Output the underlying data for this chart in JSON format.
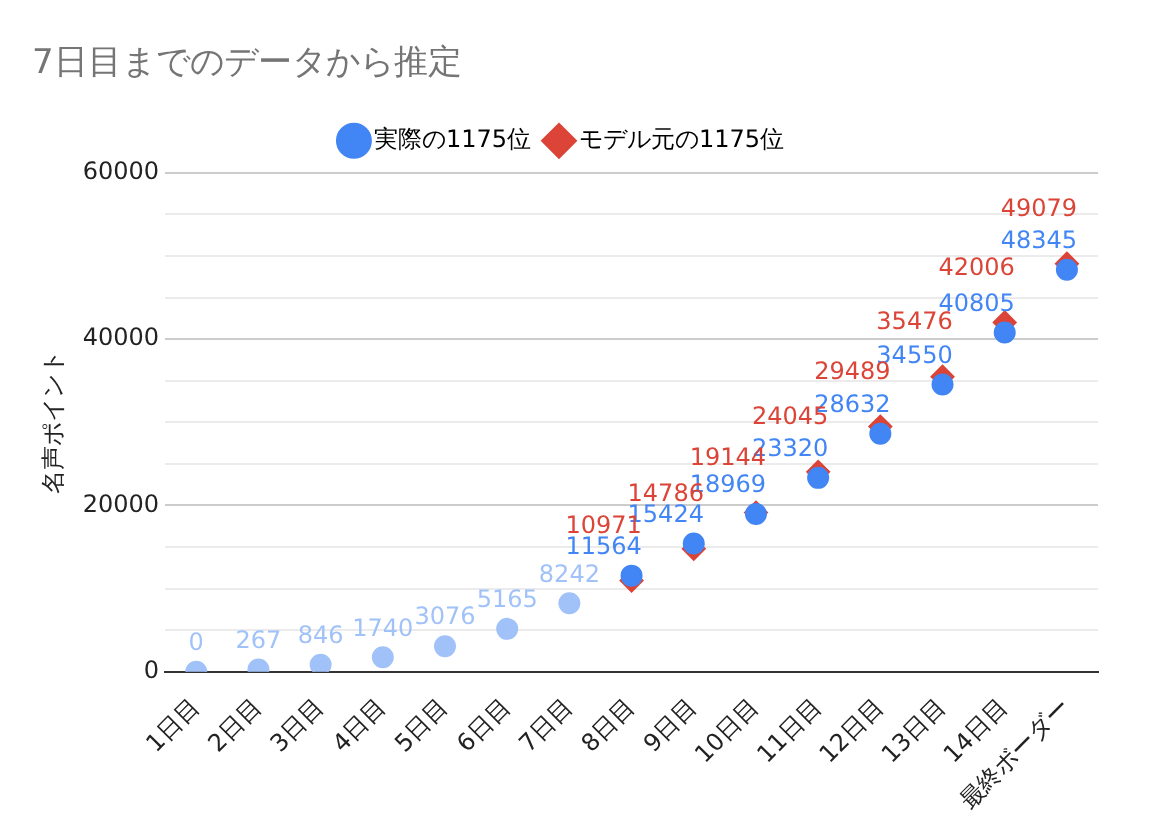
{
  "chart_data": {
    "type": "scatter",
    "title": "7日目までのデータから推定",
    "ylabel": "名声ポイント",
    "categories": [
      "1日目",
      "2日目",
      "3日目",
      "4日目",
      "5日目",
      "6日目",
      "7日目",
      "8日目",
      "9日目",
      "10日目",
      "11日目",
      "12日目",
      "13日目",
      "14日目",
      "最終ボーダー"
    ],
    "series": [
      {
        "name": "実際の1175位",
        "color": "#4285f4",
        "marker": "circle",
        "colors": [
          "#a0c2f9",
          "#a0c2f9",
          "#a0c2f9",
          "#a0c2f9",
          "#a0c2f9",
          "#a0c2f9",
          "#a0c2f9",
          "#4285f4",
          "#4285f4",
          "#4285f4",
          "#4285f4",
          "#4285f4",
          "#4285f4",
          "#4285f4",
          "#4285f4"
        ],
        "values": [
          0,
          267,
          846,
          1740,
          3076,
          5165,
          8242,
          11564,
          15424,
          18969,
          23320,
          28632,
          34550,
          40805,
          48345
        ]
      },
      {
        "name": "モデル元の1175位",
        "color": "#db4437",
        "marker": "diamond",
        "values": [
          null,
          null,
          null,
          null,
          null,
          null,
          null,
          10971,
          14786,
          19144,
          24045,
          29489,
          35476,
          42006,
          49079
        ]
      }
    ],
    "ylim": [
      0,
      60000
    ],
    "yticks": [
      0,
      {
        "value": 5000,
        "label": null
      },
      {
        "value": 10000,
        "label": null
      },
      {
        "value": 15000,
        "label": null
      },
      20000,
      {
        "value": 25000,
        "label": null
      },
      {
        "value": 30000,
        "label": null
      },
      {
        "value": 35000,
        "label": null
      },
      40000,
      {
        "value": 45000,
        "label": null
      },
      {
        "value": 50000,
        "label": null
      },
      {
        "value": 55000,
        "label": null
      },
      60000
    ],
    "grid": true,
    "legend": "top",
    "data_labels": true
  }
}
